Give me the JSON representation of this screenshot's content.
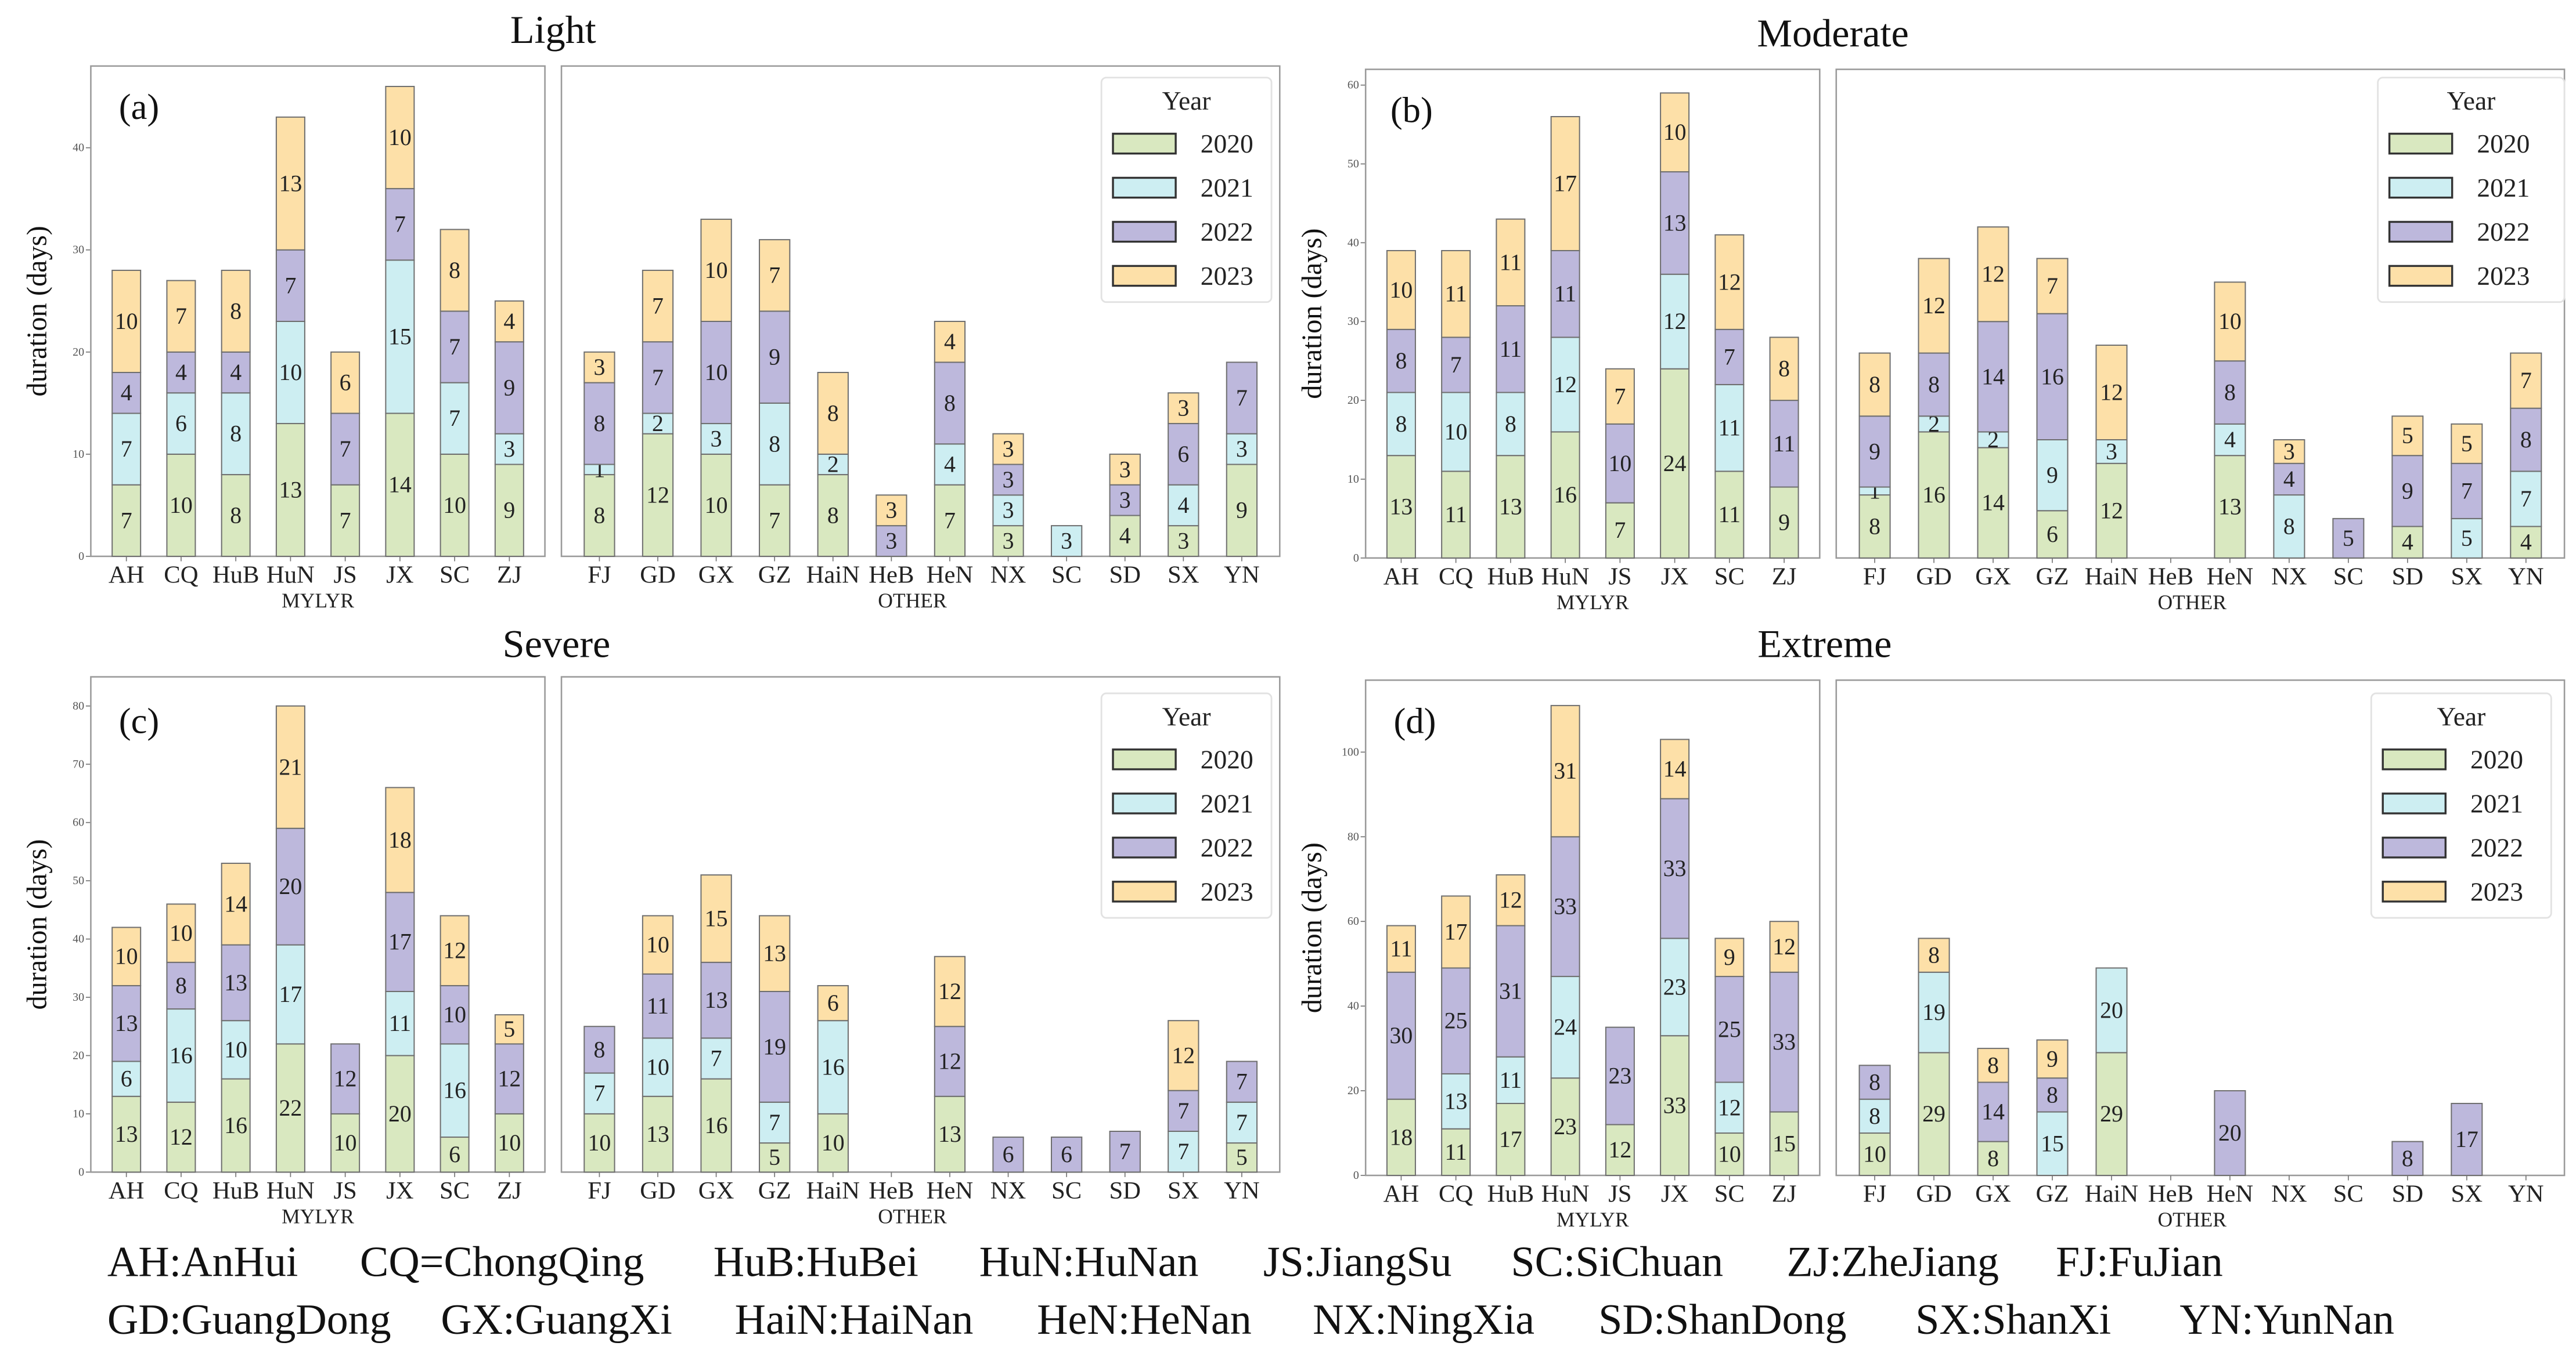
{
  "legend_title": "Year",
  "years": [
    "2020",
    "2021",
    "2022",
    "2023"
  ],
  "colors": {
    "2020": "#d9e8c0",
    "2021": "#cdeef2",
    "2022": "#bdb8dc",
    "2023": "#fde0a8"
  },
  "chart_data": [
    {
      "type": "bar",
      "stacked": true,
      "title": "Light",
      "panel_label": "(a)",
      "ylabel": "duration (days)",
      "ylim": [
        0,
        48
      ],
      "yticks": [
        0,
        10,
        20,
        30,
        40
      ],
      "legend_position": "top-right",
      "groups": [
        {
          "name": "MYLYR",
          "categories": [
            "AH",
            "CQ",
            "HuB",
            "HuN",
            "JS",
            "JX",
            "SC",
            "ZJ"
          ],
          "series": [
            {
              "name": "2020",
              "values": [
                7,
                10,
                8,
                13,
                7,
                14,
                10,
                9
              ]
            },
            {
              "name": "2021",
              "values": [
                7,
                6,
                8,
                10,
                0,
                15,
                7,
                3
              ]
            },
            {
              "name": "2022",
              "values": [
                4,
                4,
                4,
                7,
                7,
                7,
                7,
                9
              ]
            },
            {
              "name": "2023",
              "values": [
                10,
                7,
                8,
                13,
                6,
                10,
                8,
                4
              ]
            }
          ]
        },
        {
          "name": "OTHER",
          "categories": [
            "FJ",
            "GD",
            "GX",
            "GZ",
            "HaiN",
            "HeB",
            "HeN",
            "NX",
            "SC",
            "SD",
            "SX",
            "YN"
          ],
          "series": [
            {
              "name": "2020",
              "values": [
                8,
                12,
                10,
                7,
                8,
                0,
                7,
                3,
                0,
                4,
                3,
                9
              ]
            },
            {
              "name": "2021",
              "values": [
                1,
                2,
                3,
                8,
                2,
                0,
                4,
                3,
                3,
                0,
                4,
                3
              ]
            },
            {
              "name": "2022",
              "values": [
                8,
                7,
                10,
                9,
                0,
                3,
                8,
                3,
                0,
                3,
                6,
                7
              ]
            },
            {
              "name": "2023",
              "values": [
                3,
                7,
                10,
                7,
                8,
                3,
                4,
                3,
                0,
                3,
                3,
                0
              ]
            }
          ]
        }
      ]
    },
    {
      "type": "bar",
      "stacked": true,
      "title": "Moderate",
      "panel_label": "(b)",
      "ylabel": "duration (days)",
      "ylim": [
        0,
        62
      ],
      "yticks": [
        0,
        10,
        20,
        30,
        40,
        50,
        60
      ],
      "legend_position": "top-right",
      "groups": [
        {
          "name": "MYLYR",
          "categories": [
            "AH",
            "CQ",
            "HuB",
            "HuN",
            "JS",
            "JX",
            "SC",
            "ZJ"
          ],
          "series": [
            {
              "name": "2020",
              "values": [
                13,
                11,
                13,
                16,
                7,
                24,
                11,
                9
              ]
            },
            {
              "name": "2021",
              "values": [
                8,
                10,
                8,
                12,
                0,
                12,
                11,
                0
              ]
            },
            {
              "name": "2022",
              "values": [
                8,
                7,
                11,
                11,
                10,
                13,
                7,
                11
              ]
            },
            {
              "name": "2023",
              "values": [
                10,
                11,
                11,
                17,
                7,
                10,
                12,
                8
              ]
            }
          ]
        },
        {
          "name": "OTHER",
          "categories": [
            "FJ",
            "GD",
            "GX",
            "GZ",
            "HaiN",
            "HeB",
            "HeN",
            "NX",
            "SC",
            "SD",
            "SX",
            "YN"
          ],
          "series": [
            {
              "name": "2020",
              "values": [
                8,
                16,
                14,
                6,
                12,
                0,
                13,
                0,
                0,
                4,
                0,
                4
              ]
            },
            {
              "name": "2021",
              "values": [
                1,
                2,
                2,
                9,
                3,
                0,
                4,
                8,
                0,
                0,
                5,
                7
              ]
            },
            {
              "name": "2022",
              "values": [
                9,
                8,
                14,
                16,
                0,
                0,
                8,
                4,
                5,
                9,
                7,
                8
              ]
            },
            {
              "name": "2023",
              "values": [
                8,
                12,
                12,
                7,
                12,
                0,
                10,
                3,
                0,
                5,
                5,
                7
              ]
            }
          ]
        }
      ]
    },
    {
      "type": "bar",
      "stacked": true,
      "title": "Severe",
      "panel_label": "(c)",
      "ylabel": "duration (days)",
      "ylim": [
        0,
        85
      ],
      "yticks": [
        0,
        10,
        20,
        30,
        40,
        50,
        60,
        70,
        80
      ],
      "legend_position": "top-right",
      "groups": [
        {
          "name": "MYLYR",
          "categories": [
            "AH",
            "CQ",
            "HuB",
            "HuN",
            "JS",
            "JX",
            "SC",
            "ZJ"
          ],
          "series": [
            {
              "name": "2020",
              "values": [
                13,
                12,
                16,
                22,
                10,
                20,
                6,
                10
              ]
            },
            {
              "name": "2021",
              "values": [
                6,
                16,
                10,
                17,
                0,
                11,
                16,
                0
              ]
            },
            {
              "name": "2022",
              "values": [
                13,
                8,
                13,
                20,
                12,
                17,
                10,
                12
              ]
            },
            {
              "name": "2023",
              "values": [
                10,
                10,
                14,
                21,
                0,
                18,
                12,
                5
              ]
            }
          ]
        },
        {
          "name": "OTHER",
          "categories": [
            "FJ",
            "GD",
            "GX",
            "GZ",
            "HaiN",
            "HeB",
            "HeN",
            "NX",
            "SC",
            "SD",
            "SX",
            "YN"
          ],
          "series": [
            {
              "name": "2020",
              "values": [
                10,
                13,
                16,
                5,
                10,
                0,
                13,
                0,
                0,
                0,
                0,
                5
              ]
            },
            {
              "name": "2021",
              "values": [
                7,
                10,
                7,
                7,
                16,
                0,
                0,
                0,
                0,
                0,
                7,
                7
              ]
            },
            {
              "name": "2022",
              "values": [
                8,
                11,
                13,
                19,
                0,
                0,
                12,
                6,
                6,
                7,
                7,
                7
              ]
            },
            {
              "name": "2023",
              "values": [
                0,
                10,
                15,
                13,
                6,
                0,
                12,
                0,
                0,
                0,
                12,
                0
              ]
            }
          ]
        }
      ]
    },
    {
      "type": "bar",
      "stacked": true,
      "title": "Extreme",
      "panel_label": "(d)",
      "ylabel": "duration (days)",
      "ylim": [
        0,
        117
      ],
      "yticks": [
        0,
        20,
        40,
        60,
        80,
        100
      ],
      "legend_position": "top-right",
      "groups": [
        {
          "name": "MYLYR",
          "categories": [
            "AH",
            "CQ",
            "HuB",
            "HuN",
            "JS",
            "JX",
            "SC",
            "ZJ"
          ],
          "series": [
            {
              "name": "2020",
              "values": [
                18,
                11,
                17,
                23,
                12,
                33,
                10,
                15
              ]
            },
            {
              "name": "2021",
              "values": [
                0,
                13,
                11,
                24,
                0,
                23,
                12,
                0
              ]
            },
            {
              "name": "2022",
              "values": [
                30,
                25,
                31,
                33,
                23,
                33,
                25,
                33
              ]
            },
            {
              "name": "2023",
              "values": [
                11,
                17,
                12,
                31,
                0,
                14,
                9,
                12
              ]
            }
          ]
        },
        {
          "name": "OTHER",
          "categories": [
            "FJ",
            "GD",
            "GX",
            "GZ",
            "HaiN",
            "HeB",
            "HeN",
            "NX",
            "SC",
            "SD",
            "SX",
            "YN"
          ],
          "series": [
            {
              "name": "2020",
              "values": [
                10,
                29,
                8,
                0,
                29,
                0,
                0,
                0,
                0,
                0,
                0,
                0
              ]
            },
            {
              "name": "2021",
              "values": [
                8,
                19,
                0,
                15,
                20,
                0,
                0,
                0,
                0,
                0,
                0,
                0
              ]
            },
            {
              "name": "2022",
              "values": [
                8,
                0,
                14,
                8,
                0,
                0,
                20,
                0,
                0,
                8,
                17,
                0
              ]
            },
            {
              "name": "2023",
              "values": [
                0,
                8,
                8,
                9,
                0,
                0,
                0,
                0,
                0,
                0,
                0,
                0
              ]
            }
          ]
        }
      ]
    }
  ],
  "footnote": {
    "lines": [
      [
        "AH:AnHui",
        "CQ=ChongQing",
        "HuB:HuBei",
        "HuN:HuNan",
        "JS:JiangSu",
        "SC:SiChuan",
        "ZJ:ZheJiang",
        "FJ:FuJian"
      ],
      [
        "GD:GuangDong",
        "GX:GuangXi",
        "HaiN:HaiNan",
        "HeN:HeNan",
        "NX:NingXia",
        "SD:ShanDong",
        "SX:ShanXi",
        "YN:YunNan"
      ]
    ]
  }
}
